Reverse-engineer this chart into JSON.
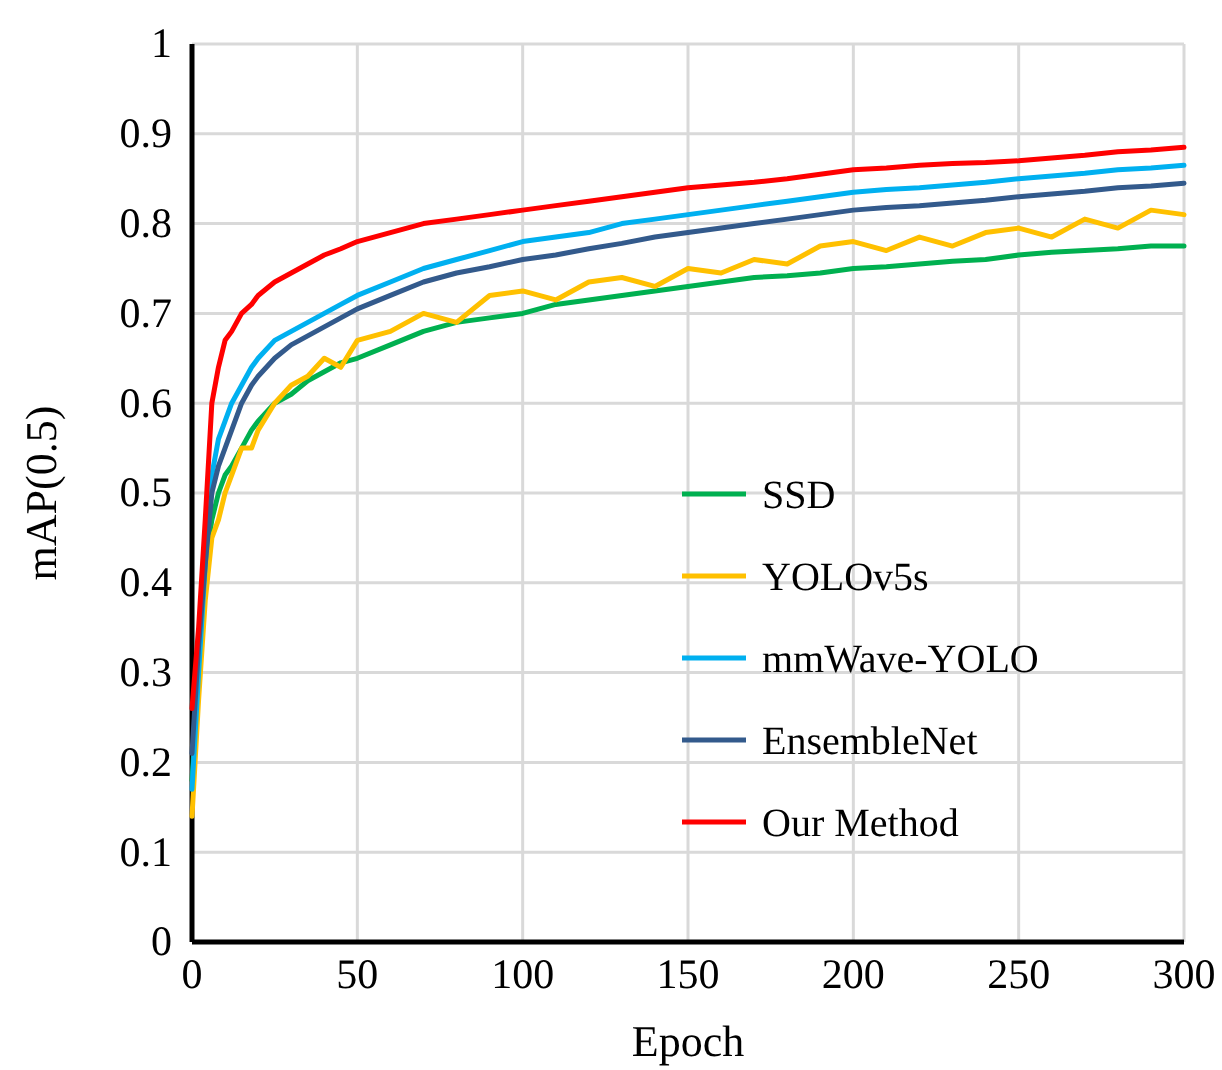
{
  "chart_data": {
    "type": "line",
    "xlabel": "Epoch",
    "ylabel": "mAP(0.5)",
    "xlim": [
      0,
      300
    ],
    "ylim": [
      0,
      1
    ],
    "xticks": [
      0,
      50,
      100,
      150,
      200,
      250,
      300
    ],
    "yticks": [
      0,
      0.1,
      0.2,
      0.3,
      0.4,
      0.5,
      0.6,
      0.7,
      0.8,
      0.9,
      1
    ],
    "grid": true,
    "legend": "right",
    "marker": "none",
    "line_style": "solid",
    "x": [
      0,
      2,
      4,
      6,
      8,
      10,
      12,
      15,
      18,
      20,
      25,
      30,
      35,
      40,
      45,
      50,
      60,
      70,
      80,
      90,
      100,
      110,
      120,
      130,
      140,
      150,
      160,
      170,
      180,
      190,
      200,
      210,
      220,
      230,
      240,
      250,
      260,
      270,
      280,
      290,
      300
    ],
    "series": [
      {
        "name": "SSD",
        "color": "#00b050",
        "values": [
          0.18,
          0.3,
          0.42,
          0.47,
          0.5,
          0.52,
          0.53,
          0.55,
          0.57,
          0.58,
          0.6,
          0.61,
          0.625,
          0.635,
          0.645,
          0.65,
          0.665,
          0.68,
          0.69,
          0.695,
          0.7,
          0.71,
          0.715,
          0.72,
          0.725,
          0.73,
          0.735,
          0.74,
          0.742,
          0.745,
          0.75,
          0.752,
          0.755,
          0.758,
          0.76,
          0.765,
          0.768,
          0.77,
          0.772,
          0.775,
          0.775
        ]
      },
      {
        "name": "YOLOv5s",
        "color": "#ffc000",
        "values": [
          0.14,
          0.27,
          0.38,
          0.45,
          0.47,
          0.5,
          0.52,
          0.55,
          0.55,
          0.57,
          0.6,
          0.62,
          0.63,
          0.65,
          0.64,
          0.67,
          0.68,
          0.7,
          0.69,
          0.72,
          0.725,
          0.715,
          0.735,
          0.74,
          0.73,
          0.75,
          0.745,
          0.76,
          0.755,
          0.775,
          0.78,
          0.77,
          0.785,
          0.775,
          0.79,
          0.795,
          0.785,
          0.805,
          0.795,
          0.815,
          0.81
        ]
      },
      {
        "name": "mmWave-YOLO",
        "color": "#00b0f0",
        "values": [
          0.17,
          0.3,
          0.42,
          0.52,
          0.56,
          0.58,
          0.6,
          0.62,
          0.64,
          0.65,
          0.67,
          0.68,
          0.69,
          0.7,
          0.71,
          0.72,
          0.735,
          0.75,
          0.76,
          0.77,
          0.78,
          0.785,
          0.79,
          0.8,
          0.805,
          0.81,
          0.815,
          0.82,
          0.825,
          0.83,
          0.835,
          0.838,
          0.84,
          0.843,
          0.846,
          0.85,
          0.853,
          0.856,
          0.86,
          0.862,
          0.865
        ]
      },
      {
        "name": "EnsembleNet",
        "color": "#335a8c",
        "values": [
          0.21,
          0.33,
          0.42,
          0.5,
          0.53,
          0.55,
          0.57,
          0.6,
          0.62,
          0.63,
          0.65,
          0.665,
          0.675,
          0.685,
          0.695,
          0.705,
          0.72,
          0.735,
          0.745,
          0.752,
          0.76,
          0.765,
          0.772,
          0.778,
          0.785,
          0.79,
          0.795,
          0.8,
          0.805,
          0.81,
          0.815,
          0.818,
          0.82,
          0.823,
          0.826,
          0.83,
          0.833,
          0.836,
          0.84,
          0.842,
          0.845
        ]
      },
      {
        "name": "Our Method",
        "color": "#ff0000",
        "values": [
          0.26,
          0.35,
          0.47,
          0.6,
          0.64,
          0.67,
          0.68,
          0.7,
          0.71,
          0.72,
          0.735,
          0.745,
          0.755,
          0.765,
          0.772,
          0.78,
          0.79,
          0.8,
          0.805,
          0.81,
          0.815,
          0.82,
          0.825,
          0.83,
          0.835,
          0.84,
          0.843,
          0.846,
          0.85,
          0.855,
          0.86,
          0.862,
          0.865,
          0.867,
          0.868,
          0.87,
          0.873,
          0.876,
          0.88,
          0.882,
          0.885
        ]
      }
    ]
  }
}
